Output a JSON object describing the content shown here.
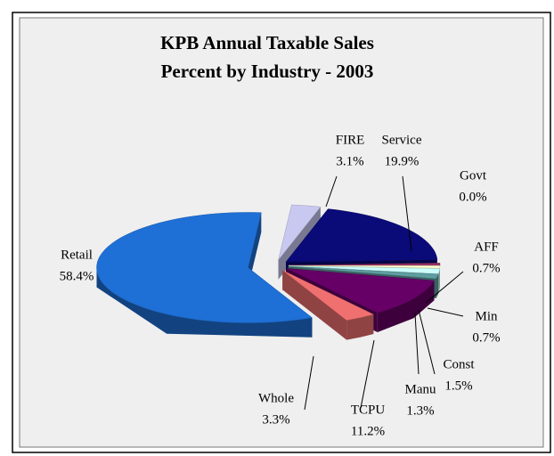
{
  "chart_data": {
    "type": "pie3d",
    "title": "KPB Annual Taxable Sales",
    "subtitle": "Percent by Industry - 2003",
    "categories": [
      "FIRE",
      "Service",
      "Govt",
      "AFF",
      "Min",
      "Const",
      "Manu",
      "TCPU",
      "Whole",
      "Retail"
    ],
    "values": [
      3.1,
      19.9,
      0.0,
      0.7,
      0.7,
      1.5,
      1.3,
      11.2,
      3.3,
      58.4
    ],
    "value_labels": [
      "3.1%",
      "19.9%",
      "0.0%",
      "0.7%",
      "0.7%",
      "1.5%",
      "1.3%",
      "11.2%",
      "3.3%",
      "58.4%"
    ],
    "colors": [
      "#c8c8f0",
      "#0a0a78",
      "#9999cc",
      "#993366",
      "#ffffcc",
      "#ccffff",
      "#5f9ea0",
      "#660066",
      "#f07070",
      "#1e6fd6"
    ]
  }
}
